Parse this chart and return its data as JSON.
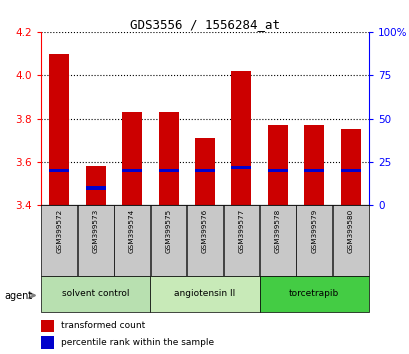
{
  "title": "GDS3556 / 1556284_at",
  "samples": [
    "GSM399572",
    "GSM399573",
    "GSM399574",
    "GSM399575",
    "GSM399576",
    "GSM399577",
    "GSM399578",
    "GSM399579",
    "GSM399580"
  ],
  "transformed_counts": [
    4.1,
    3.58,
    3.83,
    3.83,
    3.71,
    4.02,
    3.77,
    3.77,
    3.75
  ],
  "percentile_ranks": [
    20,
    10,
    20,
    20,
    20,
    22,
    20,
    20,
    20
  ],
  "ymin": 3.4,
  "ymax": 4.2,
  "yticks": [
    3.4,
    3.6,
    3.8,
    4.0,
    4.2
  ],
  "right_yticks": [
    0,
    25,
    50,
    75,
    100
  ],
  "bar_color": "#cc0000",
  "marker_color": "#0000cc",
  "bar_width": 0.55,
  "groups": [
    {
      "label": "solvent control",
      "start": 0,
      "end": 3,
      "color": "#b8e0b0"
    },
    {
      "label": "angiotensin II",
      "start": 3,
      "end": 6,
      "color": "#c8eab8"
    },
    {
      "label": "torcetrapib",
      "start": 6,
      "end": 9,
      "color": "#44cc44"
    }
  ],
  "agent_label": "agent",
  "legend_items": [
    {
      "label": "transformed count",
      "color": "#cc0000"
    },
    {
      "label": "percentile rank within the sample",
      "color": "#0000cc"
    }
  ],
  "grid_color": "black",
  "left_axis_color": "red",
  "right_axis_color": "blue",
  "background_xlabels": "#c8c8c8"
}
